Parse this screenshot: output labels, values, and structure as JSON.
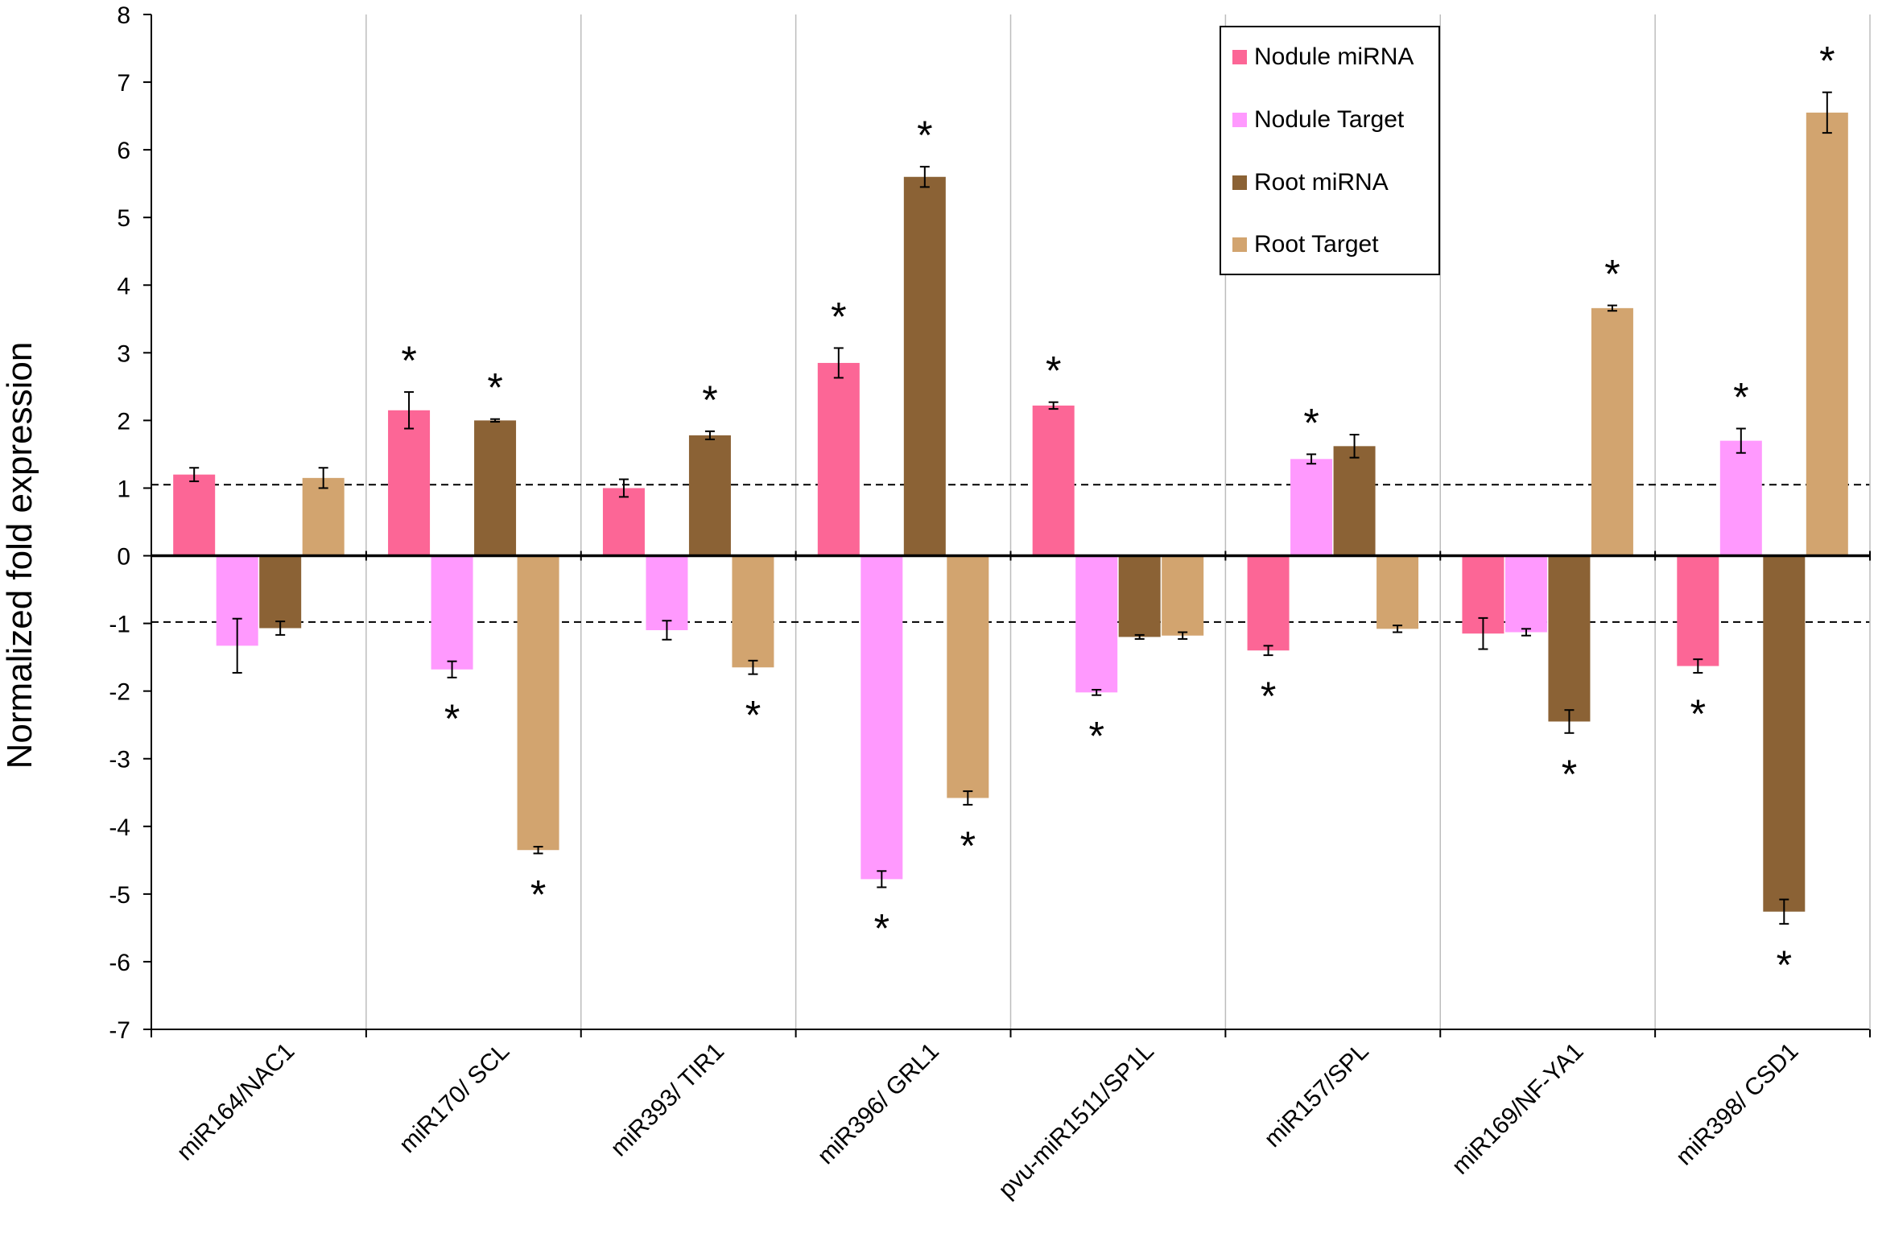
{
  "chart_data": {
    "type": "bar",
    "title": "",
    "xlabel": "",
    "ylabel": "Normalized fold expression",
    "ylim": [
      -7,
      8
    ],
    "yticks": [
      "8",
      "7",
      "6",
      "5",
      "4",
      "3",
      "2",
      "1",
      "0",
      "-1",
      "-2",
      "-3",
      "-4",
      "-5",
      "-6",
      "-7"
    ],
    "reference_lines": [
      1.05,
      -0.98
    ],
    "categories": [
      "miR164/NAC1",
      "miR170/ SCL",
      "miR393/ TIR1",
      "miR396/ GRL1",
      "pvu-miR1511/SP1L",
      "miR157/SPL",
      "miR169/NF-YA1",
      "miR398/ CSD1"
    ],
    "significance_marker": "*",
    "series": [
      {
        "name": "Nodule miRNA",
        "color": "#fc6696",
        "values": [
          1.2,
          2.15,
          1.0,
          2.85,
          2.22,
          -1.4,
          -1.15,
          -1.63
        ],
        "errors": [
          0.1,
          0.27,
          0.13,
          0.22,
          0.05,
          0.07,
          0.23,
          0.1
        ],
        "significant": [
          false,
          true,
          false,
          true,
          true,
          true,
          false,
          true
        ]
      },
      {
        "name": "Nodule Target",
        "color": "#ff99fe",
        "values": [
          -1.33,
          -1.68,
          -1.1,
          -4.78,
          -2.02,
          1.43,
          -1.13,
          1.7
        ],
        "errors": [
          0.4,
          0.12,
          0.14,
          0.12,
          0.04,
          0.07,
          0.05,
          0.18
        ],
        "significant": [
          false,
          true,
          false,
          true,
          true,
          true,
          false,
          true
        ]
      },
      {
        "name": "Root miRNA",
        "color": "#8b6235",
        "values": [
          -1.07,
          2.0,
          1.78,
          5.6,
          -1.2,
          1.62,
          -2.45,
          -5.26
        ],
        "errors": [
          0.1,
          0.02,
          0.06,
          0.15,
          0.03,
          0.17,
          0.17,
          0.18
        ],
        "significant": [
          false,
          true,
          true,
          true,
          false,
          false,
          true,
          true
        ]
      },
      {
        "name": "Root Target",
        "color": "#d2a46f",
        "values": [
          1.15,
          -4.35,
          -1.65,
          -3.58,
          -1.18,
          -1.08,
          3.66,
          6.55
        ],
        "errors": [
          0.15,
          0.05,
          0.1,
          0.1,
          0.05,
          0.05,
          0.04,
          0.3
        ],
        "significant": [
          false,
          true,
          true,
          true,
          false,
          false,
          true,
          true
        ]
      }
    ]
  }
}
